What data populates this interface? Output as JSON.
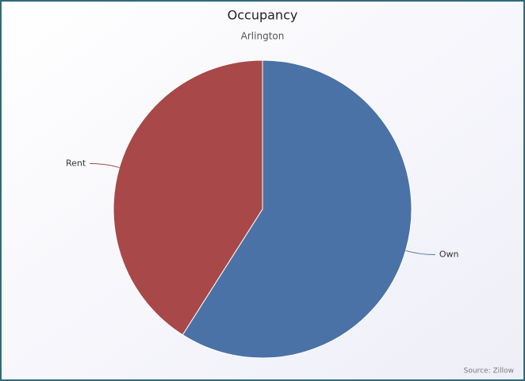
{
  "chart_data": {
    "type": "pie",
    "title": "Occupancy",
    "subtitle": "Arlington",
    "categories": [
      "Own",
      "Rent"
    ],
    "values": [
      59,
      41
    ],
    "colors": [
      "#4a72a6",
      "#a84848"
    ],
    "source": "Source: Zillow"
  }
}
